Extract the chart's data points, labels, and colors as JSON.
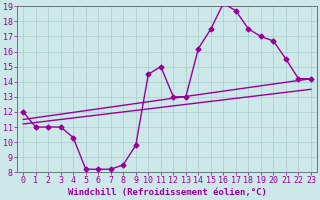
{
  "xlabel": "Windchill (Refroidissement éolien,°C)",
  "background_color": "#cce8e8",
  "grid_color": "#aacccc",
  "line_color": "#990099",
  "xlim": [
    -0.5,
    23.5
  ],
  "ylim": [
    8,
    19
  ],
  "xticks": [
    0,
    1,
    2,
    3,
    4,
    5,
    6,
    7,
    8,
    9,
    10,
    11,
    12,
    13,
    14,
    15,
    16,
    17,
    18,
    19,
    20,
    21,
    22,
    23
  ],
  "yticks": [
    8,
    9,
    10,
    11,
    12,
    13,
    14,
    15,
    16,
    17,
    18,
    19
  ],
  "line1_x": [
    0,
    1,
    2,
    3,
    4,
    5,
    6,
    7,
    8,
    9,
    10,
    11,
    12,
    13,
    14,
    15,
    16,
    17,
    18,
    19,
    20,
    21,
    22,
    23
  ],
  "line1_y": [
    12.0,
    11.0,
    11.0,
    11.0,
    10.3,
    8.2,
    8.2,
    8.2,
    8.5,
    9.8,
    14.5,
    15.0,
    13.0,
    13.0,
    16.2,
    17.5,
    19.2,
    18.7,
    17.5,
    17.0,
    16.7,
    15.5,
    14.2,
    14.2
  ],
  "line2_x": [
    0,
    23
  ],
  "line2_y": [
    11.5,
    14.2
  ],
  "line3_x": [
    0,
    23
  ],
  "line3_y": [
    11.2,
    13.5
  ],
  "tick_fontsize": 6,
  "label_fontsize": 6.5,
  "marker_size": 2.5,
  "line_width": 1.0
}
